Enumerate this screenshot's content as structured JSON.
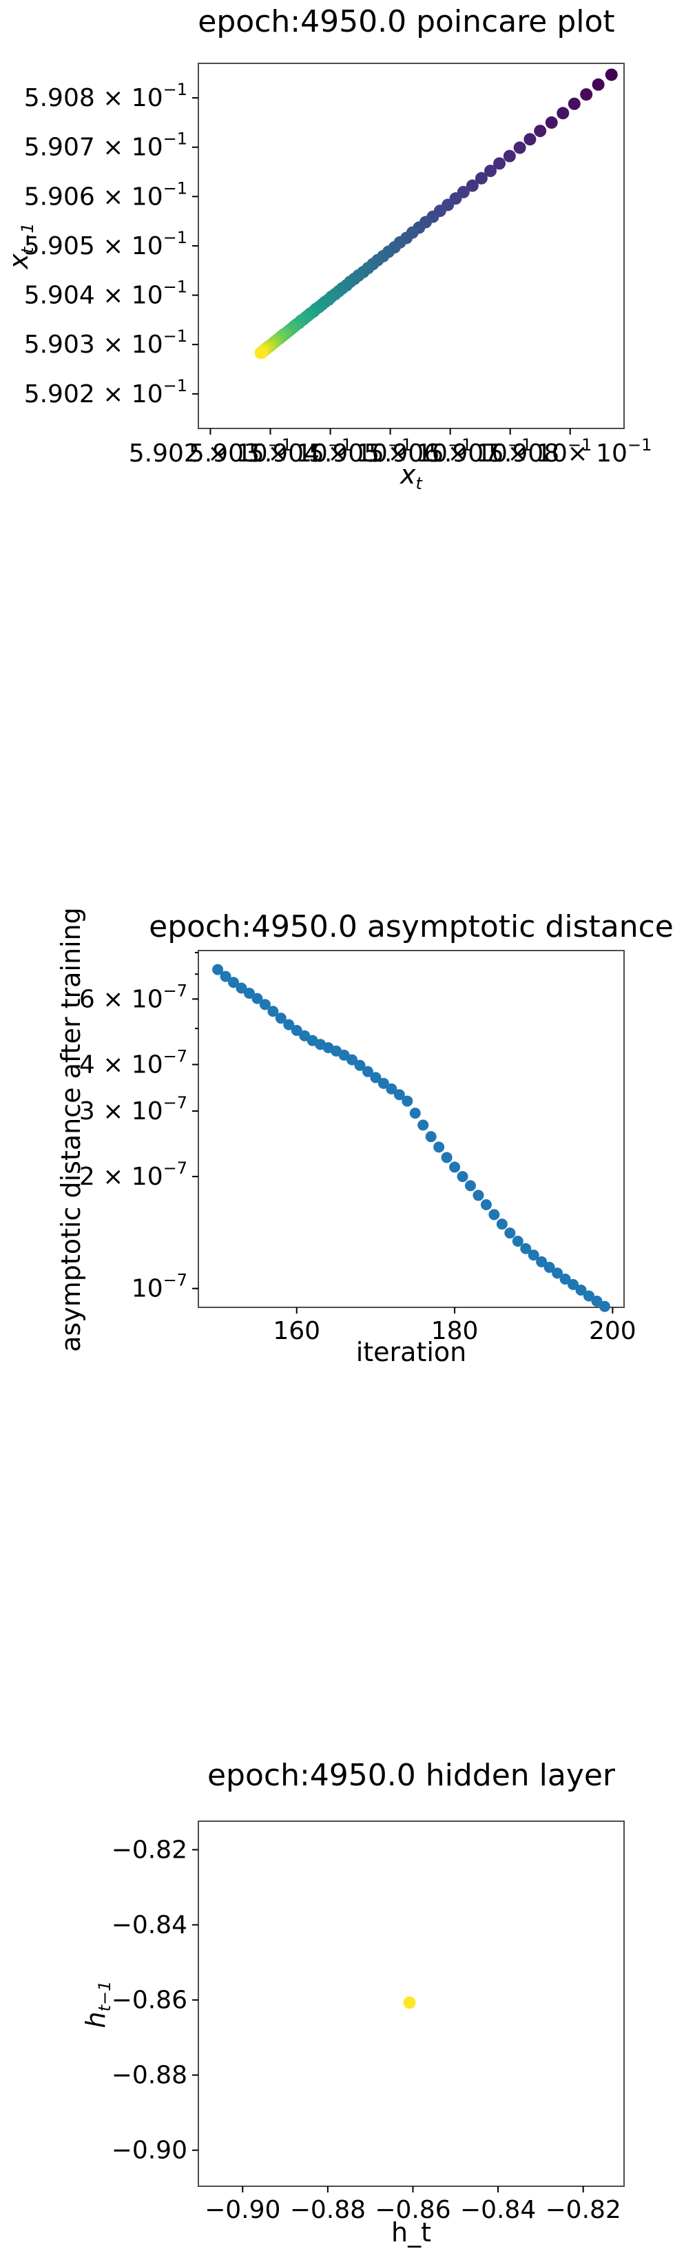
{
  "chart_data": [
    {
      "type": "scatter",
      "title": "epoch:4950.0 poincare plot",
      "xlabel_base": "x",
      "xlabel_sub": "t",
      "ylabel_base": "x",
      "ylabel_sub": "t−1",
      "xscale": "log",
      "yscale": "log",
      "xlim": [
        0.59018,
        0.59089
      ],
      "ylim": [
        0.59013,
        0.59087
      ],
      "x_tick_labels": [
        {
          "v": 0.5902,
          "mant": "5.902 × 10",
          "exp": "−1"
        },
        {
          "v": 0.5903,
          "mant": "5.903 × 10",
          "exp": "−1"
        },
        {
          "v": 0.5904,
          "mant": "5.904 × 10",
          "exp": "−1"
        },
        {
          "v": 0.5905,
          "mant": "5.905 × 10",
          "exp": "−1"
        },
        {
          "v": 0.5906,
          "mant": "5.906 × 10",
          "exp": "−1"
        },
        {
          "v": 0.5907,
          "mant": "5.907 × 10",
          "exp": "−1"
        },
        {
          "v": 0.5908,
          "mant": "5.908 × 10",
          "exp": "−1"
        }
      ],
      "y_tick_labels": [
        {
          "v": 0.5902,
          "mant": "5.902 × 10",
          "exp": "−1"
        },
        {
          "v": 0.5903,
          "mant": "5.903 × 10",
          "exp": "−1"
        },
        {
          "v": 0.5904,
          "mant": "5.904 × 10",
          "exp": "−1"
        },
        {
          "v": 0.5905,
          "mant": "5.905 × 10",
          "exp": "−1"
        },
        {
          "v": 0.5906,
          "mant": "5.906 × 10",
          "exp": "−1"
        },
        {
          "v": 0.5907,
          "mant": "5.907 × 10",
          "exp": "−1"
        },
        {
          "v": 0.5908,
          "mant": "5.908 × 10",
          "exp": "−1"
        }
      ],
      "colormap": "viridis",
      "color_by": "iteration order (early = purple, late = yellow)",
      "x": [
        0.590869,
        0.590847,
        0.590827,
        0.590807,
        0.590788,
        0.590769,
        0.59075,
        0.590733,
        0.590716,
        0.590699,
        0.590682,
        0.590667,
        0.590652,
        0.590637,
        0.590622,
        0.590609,
        0.590596,
        0.590583,
        0.590571,
        0.590559,
        0.590548,
        0.590537,
        0.590527,
        0.590516,
        0.590507,
        0.590497,
        0.590488,
        0.590479,
        0.590471,
        0.590463,
        0.590455,
        0.590447,
        0.59044,
        0.590433,
        0.590427,
        0.59042,
        0.590414,
        0.590408,
        0.590402,
        0.590397,
        0.590391,
        0.590386,
        0.590381,
        0.590376,
        0.590372,
        0.590367,
        0.590363,
        0.590359,
        0.590355,
        0.590351,
        0.590348,
        0.590344,
        0.590341,
        0.590338,
        0.590335,
        0.590332,
        0.590329,
        0.590326,
        0.590323,
        0.590321,
        0.590318,
        0.590316,
        0.590313,
        0.590311,
        0.590309,
        0.590307,
        0.590305,
        0.590303,
        0.590301,
        0.590299,
        0.590297,
        0.590296,
        0.590294,
        0.590293,
        0.590291,
        0.59029,
        0.590288,
        0.590287,
        0.590286,
        0.590284
      ],
      "y": [
        0.590847,
        0.590827,
        0.590807,
        0.590788,
        0.590769,
        0.59075,
        0.590733,
        0.590716,
        0.590699,
        0.590682,
        0.590667,
        0.590652,
        0.590637,
        0.590622,
        0.590609,
        0.590596,
        0.590583,
        0.590571,
        0.590559,
        0.590548,
        0.590537,
        0.590527,
        0.590516,
        0.590507,
        0.590497,
        0.590488,
        0.590479,
        0.590471,
        0.590463,
        0.590455,
        0.590447,
        0.59044,
        0.590433,
        0.590427,
        0.59042,
        0.590414,
        0.590408,
        0.590402,
        0.590397,
        0.590391,
        0.590386,
        0.590381,
        0.590376,
        0.590372,
        0.590367,
        0.590363,
        0.590359,
        0.590355,
        0.590351,
        0.590348,
        0.590344,
        0.590341,
        0.590338,
        0.590335,
        0.590332,
        0.590329,
        0.590326,
        0.590323,
        0.590321,
        0.590318,
        0.590316,
        0.590313,
        0.590311,
        0.590309,
        0.590307,
        0.590305,
        0.590303,
        0.590301,
        0.590299,
        0.590297,
        0.590296,
        0.590294,
        0.590293,
        0.590291,
        0.59029,
        0.590288,
        0.590287,
        0.590286,
        0.590284,
        0.590283
      ]
    },
    {
      "type": "scatter",
      "title": "epoch:4950.0 asymptotic distance",
      "xlabel": "iteration",
      "ylabel": "asymptotic distance after training",
      "xscale": "linear",
      "yscale": "log",
      "xlim": [
        147.55,
        201.45
      ],
      "ylim": [
        8.9e-08,
        8.1e-07
      ],
      "x_ticks": [
        160,
        180,
        200
      ],
      "x_tick_labels": [
        "160",
        "180",
        "200"
      ],
      "y_tick_labels": [
        {
          "v": 1e-07,
          "mant": "10",
          "exp": "−7"
        },
        {
          "v": 2e-07,
          "mant": "2 × 10",
          "exp": "−7"
        },
        {
          "v": 3e-07,
          "mant": "3 × 10",
          "exp": "−7"
        },
        {
          "v": 4e-07,
          "mant": "4 × 10",
          "exp": "−7"
        },
        {
          "v": 6e-07,
          "mant": "6 × 10",
          "exp": "−7"
        }
      ],
      "color": "#1f77b4",
      "x": [
        150,
        151,
        152,
        153,
        154,
        155,
        156,
        157,
        158,
        159,
        160,
        161,
        162,
        163,
        164,
        165,
        166,
        167,
        168,
        169,
        170,
        171,
        172,
        173,
        174,
        175,
        176,
        177,
        178,
        179,
        180,
        181,
        182,
        183,
        184,
        185,
        186,
        187,
        188,
        189,
        190,
        191,
        192,
        193,
        194,
        195,
        196,
        197,
        198,
        199
      ],
      "y": [
        7.2e-07,
        6.9e-07,
        6.65e-07,
        6.42e-07,
        6.22e-07,
        6.02e-07,
        5.8e-07,
        5.56e-07,
        5.33e-07,
        5.12e-07,
        4.94e-07,
        4.78e-07,
        4.64e-07,
        4.53e-07,
        4.44e-07,
        4.35e-07,
        4.24e-07,
        4.12e-07,
        3.98e-07,
        3.83e-07,
        3.69e-07,
        3.56e-07,
        3.44e-07,
        3.32e-07,
        3.19e-07,
        2.96e-07,
        2.75e-07,
        2.56e-07,
        2.4e-07,
        2.25e-07,
        2.12e-07,
        2e-07,
        1.89e-07,
        1.78e-07,
        1.68e-07,
        1.58e-07,
        1.49e-07,
        1.41e-07,
        1.34e-07,
        1.28e-07,
        1.23e-07,
        1.18e-07,
        1.14e-07,
        1.1e-07,
        1.06e-07,
        1.025e-07,
        9.9e-08,
        9.55e-08,
        9.25e-08,
        8.95e-08
      ]
    },
    {
      "type": "scatter",
      "title": "epoch:4950.0 hidden layer",
      "xlabel": "h_t",
      "ylabel_base": "h",
      "ylabel_sub": "t−1",
      "xscale": "linear",
      "yscale": "linear",
      "xlim": [
        -0.9104,
        -0.8104
      ],
      "ylim": [
        -0.9096,
        -0.8124
      ],
      "x_ticks": [
        -0.9,
        -0.88,
        -0.86,
        -0.84,
        -0.82
      ],
      "x_tick_labels": [
        "−0.90",
        "−0.88",
        "−0.86",
        "−0.84",
        "−0.82"
      ],
      "y_ticks": [
        -0.9,
        -0.88,
        -0.86,
        -0.84,
        -0.82
      ],
      "y_tick_labels": [
        "−0.90",
        "−0.88",
        "−0.86",
        "−0.84",
        "−0.82"
      ],
      "color": "#fde725",
      "x": [
        -0.8608
      ],
      "y": [
        -0.8607
      ]
    }
  ]
}
